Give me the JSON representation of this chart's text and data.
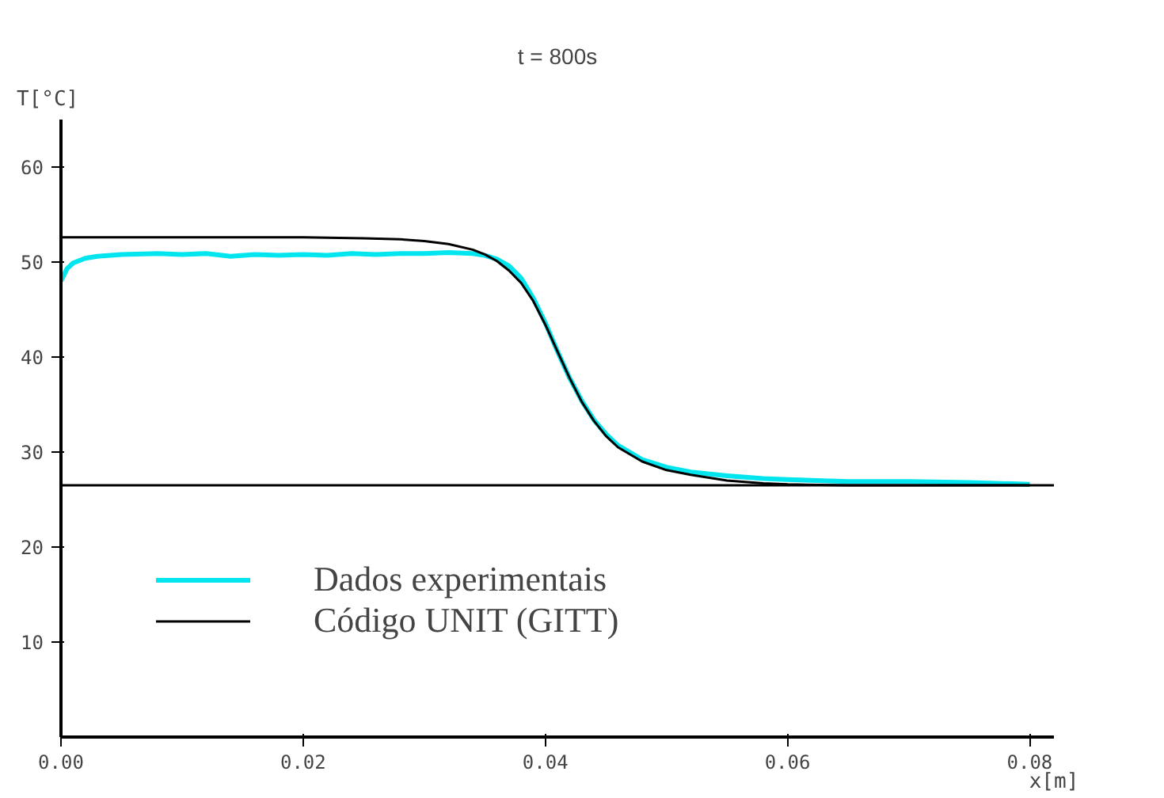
{
  "chart_data": {
    "type": "line",
    "title": "t = 800s",
    "xlabel": "x[m]",
    "ylabel": "T[°C]",
    "xlim": [
      0,
      0.082
    ],
    "ylim": [
      0,
      65
    ],
    "xticks": [
      {
        "value": 0,
        "label": "0.00"
      },
      {
        "value": 0.02,
        "label": "0.02"
      },
      {
        "value": 0.04,
        "label": "0.04"
      },
      {
        "value": 0.06,
        "label": "0.06"
      },
      {
        "value": 0.08,
        "label": "0.08"
      }
    ],
    "yticks": [
      10,
      20,
      30,
      40,
      50,
      60
    ],
    "grid": false,
    "legend": "bottom left",
    "ref_lines": [
      {
        "axis": "y",
        "value": 26.5,
        "color": "#000000"
      }
    ],
    "series": [
      {
        "name": "Dados experimentais",
        "color": "#00e5ee",
        "x": [
          0,
          0.0005,
          0.001,
          0.002,
          0.003,
          0.005,
          0.008,
          0.01,
          0.012,
          0.014,
          0.016,
          0.018,
          0.02,
          0.022,
          0.024,
          0.026,
          0.028,
          0.03,
          0.032,
          0.034,
          0.035,
          0.036,
          0.037,
          0.038,
          0.039,
          0.04,
          0.041,
          0.042,
          0.043,
          0.044,
          0.045,
          0.046,
          0.048,
          0.05,
          0.052,
          0.055,
          0.058,
          0.06,
          0.065,
          0.07,
          0.075,
          0.08
        ],
        "values": [
          48.0,
          49.3,
          49.9,
          50.4,
          50.6,
          50.8,
          50.9,
          50.8,
          50.9,
          50.6,
          50.8,
          50.7,
          50.8,
          50.7,
          50.9,
          50.8,
          50.9,
          50.9,
          51.0,
          50.9,
          50.7,
          50.3,
          49.6,
          48.3,
          46.2,
          43.6,
          40.6,
          37.8,
          35.4,
          33.4,
          31.9,
          30.7,
          29.2,
          28.4,
          27.9,
          27.5,
          27.2,
          27.1,
          26.9,
          26.9,
          26.8,
          26.6
        ]
      },
      {
        "name": "Código UNIT (GITT)",
        "color": "#000000",
        "x": [
          0,
          0.01,
          0.02,
          0.025,
          0.028,
          0.03,
          0.032,
          0.034,
          0.035,
          0.036,
          0.037,
          0.038,
          0.039,
          0.04,
          0.041,
          0.042,
          0.043,
          0.044,
          0.045,
          0.046,
          0.048,
          0.05,
          0.052,
          0.055,
          0.058,
          0.06,
          0.065,
          0.07,
          0.075,
          0.08
        ],
        "values": [
          52.6,
          52.6,
          52.6,
          52.5,
          52.4,
          52.2,
          51.9,
          51.3,
          50.8,
          50.1,
          49.1,
          47.8,
          45.9,
          43.4,
          40.6,
          37.8,
          35.3,
          33.3,
          31.7,
          30.5,
          29.0,
          28.1,
          27.6,
          27.0,
          26.7,
          26.6,
          26.5,
          26.5,
          26.5,
          26.5
        ]
      }
    ]
  }
}
